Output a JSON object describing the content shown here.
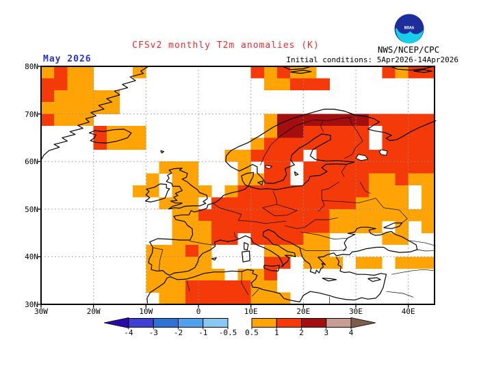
{
  "header": {
    "title": "CFSv2 monthly T2m anomalies (K)",
    "title_color": "#E62E2E",
    "month": "May 2026",
    "month_color": "#2633C8",
    "org": "NWS/NCEP/CPC",
    "initial_conditions": "Initial conditions: 5Apr2026-14Apr2026",
    "logo_text": "NOAA",
    "logo_circle_color": "#1C2E9C",
    "logo_wave_color": "#17D0E8"
  },
  "chart_data": {
    "type": "heatmap",
    "title": "CFSv2 monthly T2m anomalies (K)",
    "subtitle": "May 2026",
    "region": "Europe / North Atlantic",
    "units": "K",
    "lon_range": [
      -30,
      45
    ],
    "lat_range": [
      30,
      80
    ],
    "grid_deg": 2.5,
    "x_ticks": [
      {
        "label": "30W",
        "lon": -30
      },
      {
        "label": "20W",
        "lon": -20
      },
      {
        "label": "10W",
        "lon": -10
      },
      {
        "label": "0",
        "lon": 0
      },
      {
        "label": "10E",
        "lon": 10
      },
      {
        "label": "20E",
        "lon": 20
      },
      {
        "label": "30E",
        "lon": 30
      },
      {
        "label": "40E",
        "lon": 40
      }
    ],
    "y_ticks": [
      {
        "label": "80N",
        "lat": 80
      },
      {
        "label": "70N",
        "lat": 70
      },
      {
        "label": "60N",
        "lat": 60
      },
      {
        "label": "50N",
        "lat": 50
      },
      {
        "label": "40N",
        "lat": 40
      },
      {
        "label": "30N",
        "lat": 30
      }
    ],
    "gridlines": {
      "style": "dotted",
      "color": "#909090",
      "lon_step": 10,
      "lat_step": 10
    },
    "palette": {
      "o": "#FFA405",
      "r": "#F53A0A",
      "d": "#A30F0E"
    },
    "cell_meaning": {
      ".": "no shading (anomaly < 0.5 K)",
      "o": "+0.5 to +1 K",
      "r": "+1 to +2 K",
      "d": "+2 to +3 K"
    },
    "anomaly_grid": [
      "oroo...o........roroo.....rorr",
      "rroo.............oorrr........",
      "rooooo........................",
      "oooooo........................",
      "rooo.............odddddddrrrrr",
      "....rooo.........oddrrrrr.rrrr",
      "....rooo........orrrrrrrr.rrrr",
      "..............oorrrr.rrrrrrrrr",
      ".........ooo...o.rr.rrrrrrrrrr",
      "........o.oo...oorr.rrrrrooroo",
      ".......oo.ooo.orrrrrrrrrrooo.o",
      ".........ooo.rrrrrrrrrrroooo.o",
      "..........oorrrrrrrrrroooooooo",
      "..........ooorrrrrrrrroooo.o.o",
      "..........ooorr.rrrroo....oo..",
      "........oooro....ooooo........",
      "........ooooo....rr.ooo.oo.ooo",
      "........oooooo.oor............",
      "........ooorrrrroo............",
      ".........oorrrrrooo..........."
    ]
  },
  "colorbar": {
    "tick_labels": [
      "-4",
      "-3",
      "-2",
      "-1",
      "-0.5",
      "0.5",
      "1",
      "2",
      "3",
      "4"
    ],
    "segments_cold": [
      "#3F3FD1",
      "#2E72D2",
      "#4FA2EC",
      "#8AC8F3"
    ],
    "segments_warm": [
      "#FFA405",
      "#F53A0A",
      "#A30F0E",
      "#C69C94"
    ],
    "arrow_left_color": "#2A0BA8",
    "arrow_right_color": "#7D5E4E"
  }
}
